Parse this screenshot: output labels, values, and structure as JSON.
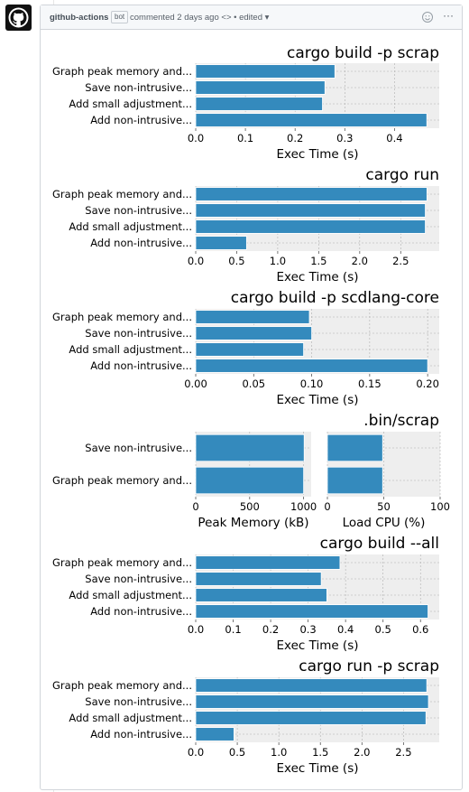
{
  "comment": {
    "author": "github-actions",
    "badge": "bot",
    "meta": "commented 2 days ago <> • edited ▾",
    "emoji_icon": "smiley-icon",
    "menu_icon": "kebab-horizontal-icon",
    "menu_glyph": "···"
  },
  "chart_data": [
    {
      "type": "bar",
      "orientation": "horizontal",
      "title": "cargo build -p scrap",
      "categories": [
        "Graph peak memory and...",
        "Save non-intrusive...",
        "Add small adjustment...",
        "Add non-intrusive..."
      ],
      "values": [
        0.28,
        0.26,
        0.255,
        0.465
      ],
      "xlabel": "Exec Time (s)",
      "xlim": [
        0,
        0.49
      ],
      "xticks": [
        0,
        0.1,
        0.2,
        0.3,
        0.4
      ],
      "xtick_labels": [
        "0.0",
        "0.1",
        "0.2",
        "0.3",
        "0.4"
      ],
      "grid": true
    },
    {
      "type": "bar",
      "orientation": "horizontal",
      "title": "cargo run",
      "categories": [
        "Graph peak memory and...",
        "Save non-intrusive...",
        "Add small adjustment...",
        "Add non-intrusive..."
      ],
      "values": [
        2.82,
        2.8,
        2.8,
        0.62
      ],
      "xlabel": "Exec Time (s)",
      "xlim": [
        0,
        2.97
      ],
      "xticks": [
        0,
        0.5,
        1,
        1.5,
        2,
        2.5
      ],
      "xtick_labels": [
        "0.0",
        "0.5",
        "1.0",
        "1.5",
        "2.0",
        "2.5"
      ],
      "grid": true
    },
    {
      "type": "bar",
      "orientation": "horizontal",
      "title": "cargo build -p scdlang-core",
      "categories": [
        "Graph peak memory and...",
        "Save non-intrusive...",
        "Add small adjustment...",
        "Add non-intrusive..."
      ],
      "values": [
        0.098,
        0.1,
        0.093,
        0.2
      ],
      "xlabel": "Exec Time (s)",
      "xlim": [
        0,
        0.21
      ],
      "xticks": [
        0,
        0.05,
        0.1,
        0.15,
        0.2
      ],
      "xtick_labels": [
        "0.00",
        "0.05",
        "0.10",
        "0.15",
        "0.20"
      ],
      "grid": true
    },
    {
      "type": "bar",
      "orientation": "horizontal",
      "title": ".bin/scrap",
      "categories": [
        "Save non-intrusive...",
        "Graph peak memory and..."
      ],
      "panels": [
        {
          "xlabel": "Peak Memory (kB)",
          "values": [
            1005,
            1000
          ],
          "xlim": [
            0,
            1070
          ],
          "xticks": [
            0,
            500,
            1000
          ],
          "xtick_labels": [
            "0",
            "500",
            "1000"
          ]
        },
        {
          "xlabel": "Load CPU (%)",
          "values": [
            49,
            49
          ],
          "xlim": [
            0,
            100
          ],
          "xticks": [
            0,
            50,
            100
          ],
          "xtick_labels": [
            "0",
            "50",
            "100"
          ]
        }
      ],
      "grid": true
    },
    {
      "type": "bar",
      "orientation": "horizontal",
      "title": "cargo build --all",
      "categories": [
        "Graph peak memory and...",
        "Save non-intrusive...",
        "Add small adjustment...",
        "Add non-intrusive..."
      ],
      "values": [
        0.385,
        0.335,
        0.35,
        0.62
      ],
      "xlabel": "Exec Time (s)",
      "xlim": [
        0,
        0.65
      ],
      "xticks": [
        0,
        0.1,
        0.2,
        0.3,
        0.4,
        0.5,
        0.6
      ],
      "xtick_labels": [
        "0.0",
        "0.1",
        "0.2",
        "0.3",
        "0.4",
        "0.5",
        "0.6"
      ],
      "grid": true
    },
    {
      "type": "bar",
      "orientation": "horizontal",
      "title": "cargo run -p scrap",
      "categories": [
        "Graph peak memory and...",
        "Save non-intrusive...",
        "Add small adjustment...",
        "Add non-intrusive..."
      ],
      "values": [
        2.78,
        2.8,
        2.77,
        0.46
      ],
      "xlabel": "Exec Time (s)",
      "xlim": [
        0,
        2.93
      ],
      "xticks": [
        0,
        0.5,
        1,
        1.5,
        2,
        2.5
      ],
      "xtick_labels": [
        "0.0",
        "0.5",
        "1.0",
        "1.5",
        "2.0",
        "2.5"
      ],
      "grid": true
    }
  ],
  "colors": {
    "bar": "#348abd",
    "plot_bg": "#eeeeee",
    "grid": "#b0b0b0"
  }
}
